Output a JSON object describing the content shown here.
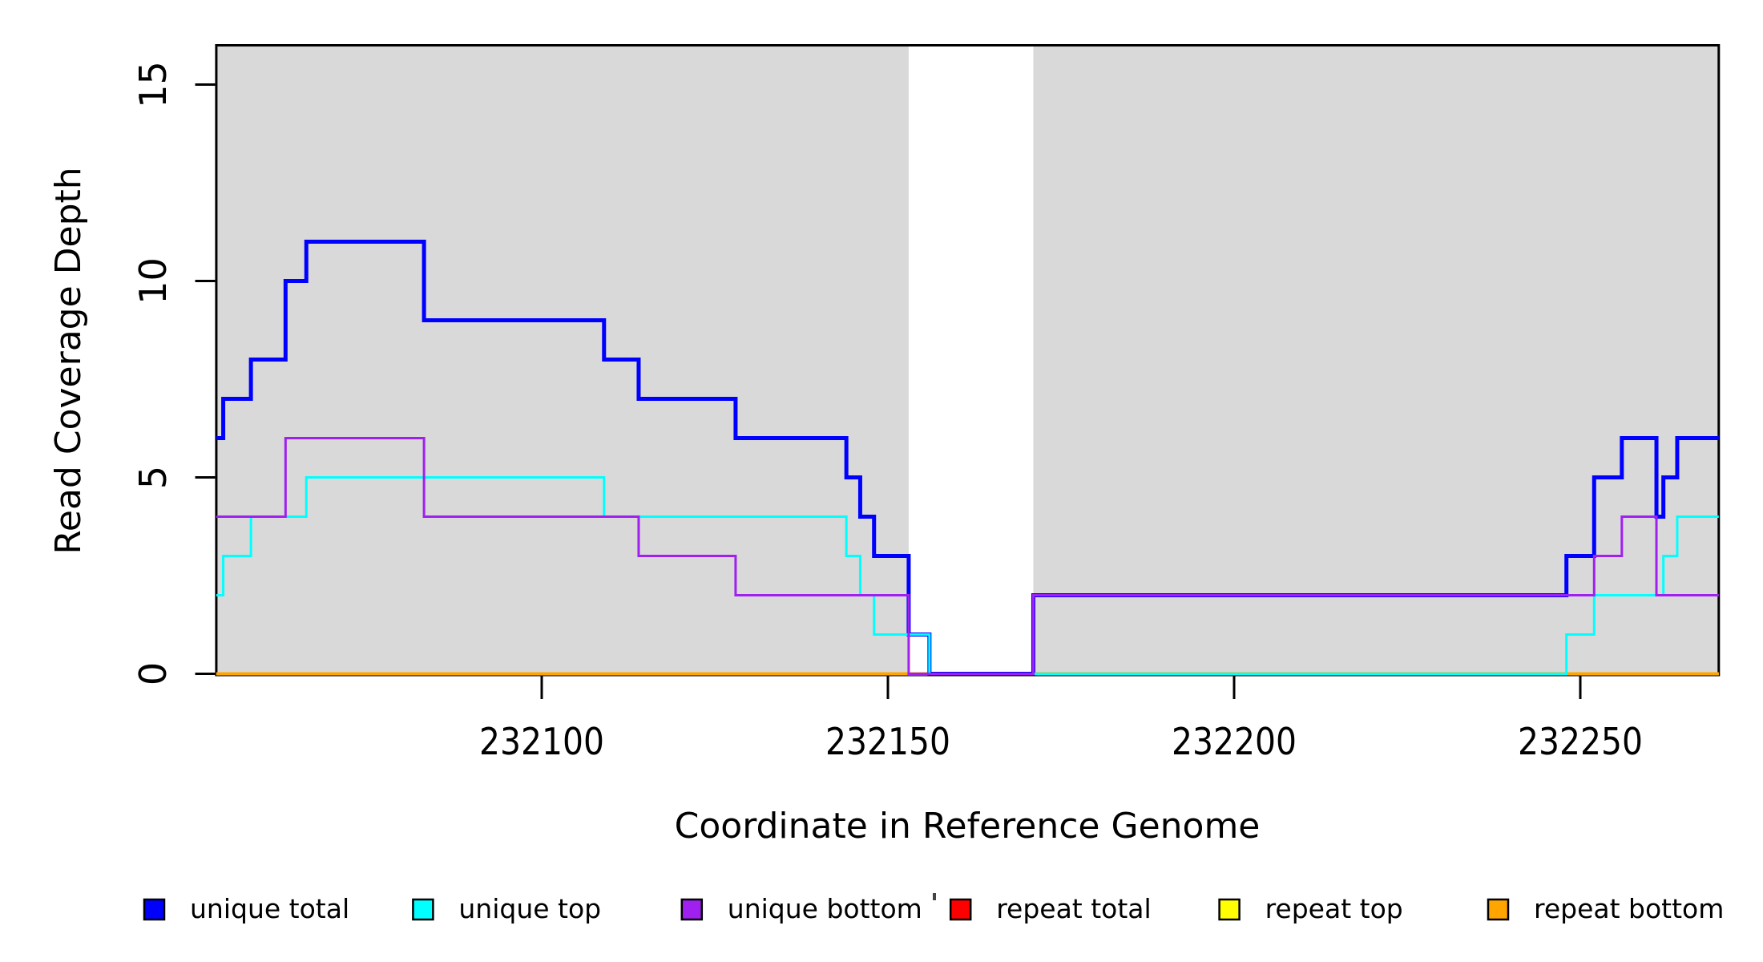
{
  "chart_data": {
    "type": "line",
    "subtype": "step-coverage",
    "title": "",
    "xlabel": "Coordinate in Reference Genome",
    "ylabel": "Read Coverage Depth",
    "xlim": [
      232053,
      232270
    ],
    "ylim": [
      0,
      16
    ],
    "x_ticks": [
      232100,
      232150,
      232200,
      232250
    ],
    "y_ticks": [
      0,
      5,
      10,
      15
    ],
    "grid": false,
    "legend_position": "bottom",
    "colors": {
      "axis": "#000000",
      "shaded_region": "#D9D9D9",
      "background": "#FFFFFF"
    },
    "shaded_regions": [
      {
        "x0": 232053,
        "x1": 232153
      },
      {
        "x0": 232171,
        "x1": 232270
      }
    ],
    "series": [
      {
        "name": "unique total",
        "color": "#0000FF",
        "line_width": 5,
        "points": [
          [
            232053,
            6
          ],
          [
            232054,
            7
          ],
          [
            232058,
            8
          ],
          [
            232063,
            10
          ],
          [
            232066,
            11
          ],
          [
            232083,
            9
          ],
          [
            232109,
            8
          ],
          [
            232114,
            7
          ],
          [
            232128,
            6
          ],
          [
            232144,
            5
          ],
          [
            232146,
            4
          ],
          [
            232148,
            3
          ],
          [
            232153,
            1
          ],
          [
            232156,
            0
          ],
          [
            232171,
            2
          ],
          [
            232248,
            3
          ],
          [
            232252,
            5
          ],
          [
            232256,
            6
          ],
          [
            232261,
            4
          ],
          [
            232262,
            5
          ],
          [
            232264,
            6
          ]
        ]
      },
      {
        "name": "unique top",
        "color": "#00FFFF",
        "line_width": 3,
        "points": [
          [
            232053,
            2
          ],
          [
            232054,
            3
          ],
          [
            232058,
            4
          ],
          [
            232066,
            5
          ],
          [
            232109,
            4
          ],
          [
            232144,
            3
          ],
          [
            232146,
            2
          ],
          [
            232148,
            1
          ],
          [
            232156,
            0
          ],
          [
            232248,
            1
          ],
          [
            232252,
            2
          ],
          [
            232262,
            3
          ],
          [
            232264,
            4
          ]
        ]
      },
      {
        "name": "unique bottom",
        "color": "#A020F0",
        "line_width": 3,
        "points": [
          [
            232053,
            4
          ],
          [
            232063,
            6
          ],
          [
            232083,
            4
          ],
          [
            232114,
            3
          ],
          [
            232128,
            2
          ],
          [
            232153,
            0
          ],
          [
            232171,
            2
          ],
          [
            232252,
            3
          ],
          [
            232256,
            4
          ],
          [
            232261,
            2
          ]
        ]
      },
      {
        "name": "repeat total",
        "color": "#FF0000",
        "line_width": 3,
        "points": [
          [
            232053,
            0
          ]
        ]
      },
      {
        "name": "repeat top",
        "color": "#FFFF00",
        "line_width": 3,
        "points": [
          [
            232053,
            0
          ]
        ]
      },
      {
        "name": "repeat bottom",
        "color": "#FFA500",
        "line_width": 4,
        "points": [
          [
            232053,
            0
          ]
        ]
      }
    ],
    "draw_order": [
      3,
      4,
      5,
      0,
      1,
      2
    ]
  },
  "legend": {
    "items": [
      {
        "label": "unique total",
        "color": "#0000FF"
      },
      {
        "label": "unique top",
        "color": "#00FFFF"
      },
      {
        "label": "unique bottom",
        "color": "#A020F0"
      },
      {
        "label": "repeat total",
        "color": "#FF0000"
      },
      {
        "label": "repeat top",
        "color": "#FFFF00"
      },
      {
        "label": "repeat bottom",
        "color": "#FFA500"
      }
    ]
  }
}
